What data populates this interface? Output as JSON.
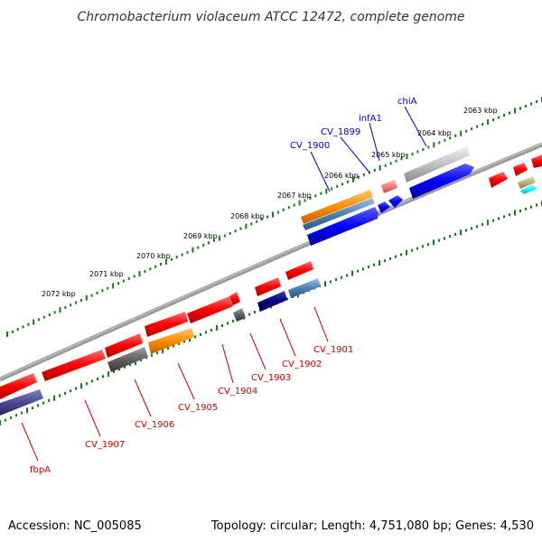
{
  "title": "Chromobacterium violaceum ATCC 12472, complete genome",
  "footer": {
    "accession": "Accession: NC_005085",
    "summary": "Topology: circular; Length: 4,751,080 bp; Genes: 4,530"
  },
  "kbp_labels": [
    "2063 kbp",
    "2064 kbp",
    "2065 kbp",
    "2066 kbp",
    "2067 kbp",
    "2068 kbp",
    "2069 kbp",
    "2070 kbp",
    "2071 kbp",
    "2072 kbp"
  ],
  "gene_labels_forward": [
    "chiA",
    "infA1",
    "CV_1899",
    "CV_1900"
  ],
  "gene_labels_reverse": [
    "CV_1901",
    "CV_1902",
    "CV_1903",
    "CV_1904",
    "CV_1905",
    "CV_1906",
    "CV_1907",
    "fbpA"
  ],
  "colors": {
    "forward_label": "#0000cc",
    "reverse_label": "#cc0000",
    "tick": "#1a7a1a",
    "backbone": "#888888"
  }
}
